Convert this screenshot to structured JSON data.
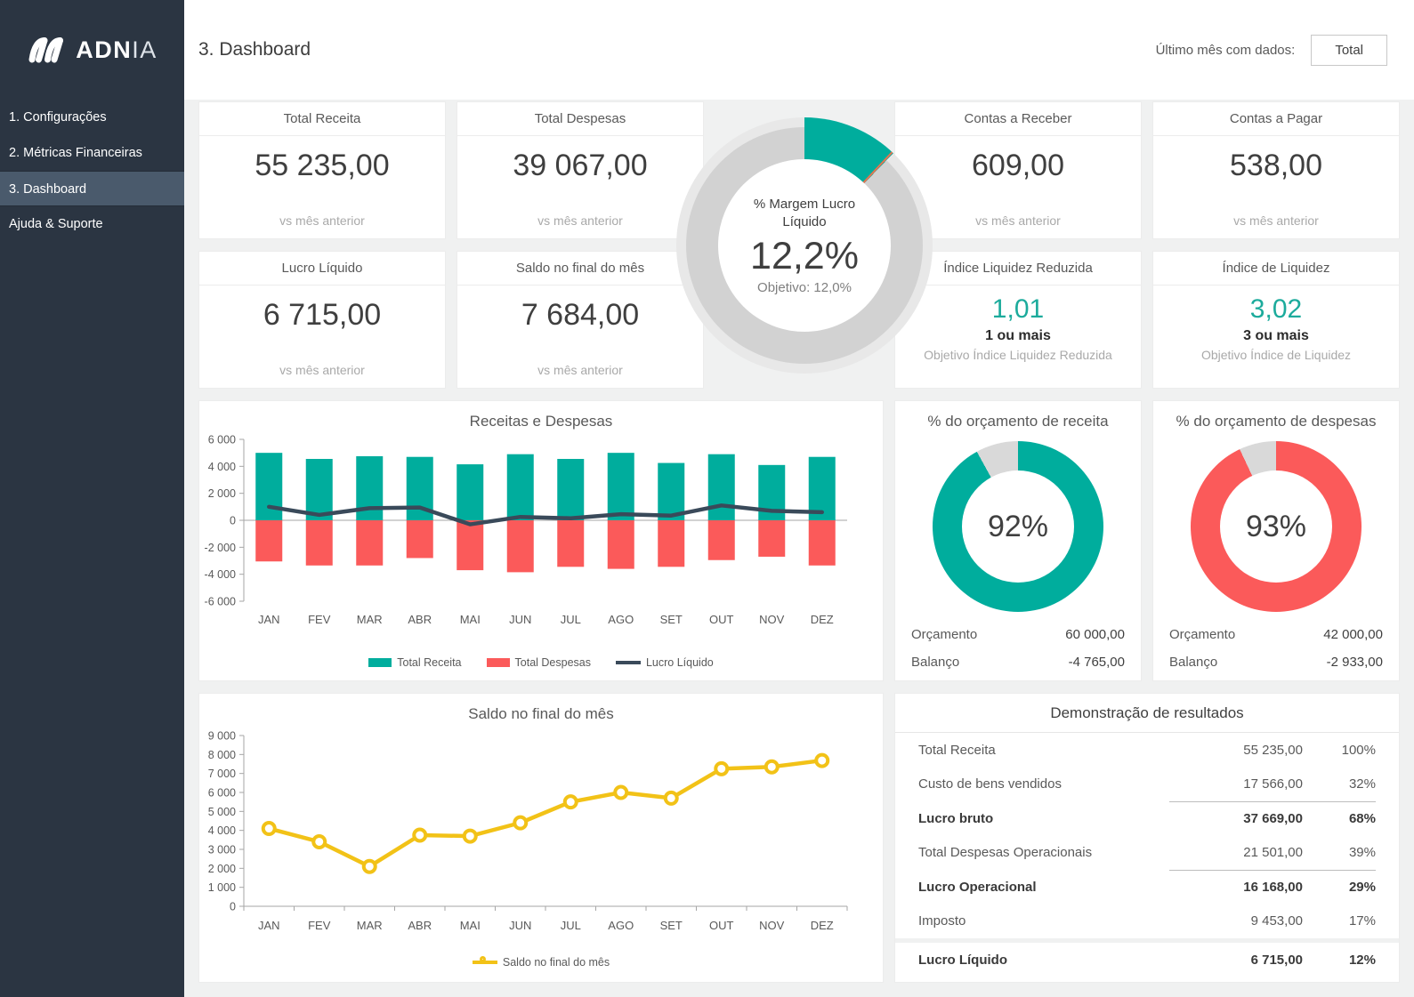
{
  "colors": {
    "teal": "#00ad9d",
    "red": "#fb5a5a",
    "dark_line": "#3a4a5a",
    "yellow": "#f2c217",
    "gauge_gray": "#d2d2d2",
    "gauge_halo": "#e8e8e8",
    "donut_gray": "#d9d9d9",
    "sidebar_bg": "#2b3542"
  },
  "sidebar": {
    "logo_bold": "ADN",
    "logo_light": "IA",
    "items": [
      {
        "label": "1. Configurações",
        "active": false
      },
      {
        "label": "2. Métricas Financeiras",
        "active": false
      },
      {
        "label": "3. Dashboard",
        "active": true
      },
      {
        "label": "Ajuda & Suporte",
        "active": false
      }
    ]
  },
  "header": {
    "title": "3. Dashboard",
    "filter_label": "Último mês com dados:",
    "filter_value": "Total"
  },
  "kpi_cards": [
    {
      "title": "Total Receita",
      "value": "55 235,00",
      "sub": "vs mês anterior"
    },
    {
      "title": "Total Despesas",
      "value": "39 067,00",
      "sub": "vs mês anterior"
    },
    {
      "title": "Contas a Receber",
      "value": "609,00",
      "sub": "vs mês anterior"
    },
    {
      "title": "Contas a Pagar",
      "value": "538,00",
      "sub": "vs mês anterior"
    },
    {
      "title": "Lucro Líquido",
      "value": "6 715,00",
      "sub": "vs mês anterior"
    },
    {
      "title": "Saldo no final do mês",
      "value": "7 684,00",
      "sub": "vs mês anterior"
    },
    {
      "title": "Índice Liquidez Reduzida",
      "value": "1,01",
      "goal": "1 ou mais",
      "sub": "Objetivo Índice Liquidez Reduzida"
    },
    {
      "title": "Índice de Liquidez",
      "value": "3,02",
      "goal": "3 ou mais",
      "sub": "Objetivo Índice de Liquidez"
    }
  ],
  "gauge": {
    "title": "% Margem Lucro Líquido",
    "value": "12,2%",
    "value_pct": 12.2,
    "target_label": "Objetivo:  12,0%",
    "target_pct": 12.0
  },
  "budget_donuts": [
    {
      "title": "% do orçamento de receita",
      "pct": 92,
      "pct_label": "92%",
      "color": "#00ad9d",
      "rows": [
        {
          "label": "Orçamento",
          "value": "60 000,00"
        },
        {
          "label": "Balanço",
          "value": "-4 765,00"
        }
      ]
    },
    {
      "title": "% do orçamento de despesas",
      "pct": 93,
      "pct_label": "93%",
      "color": "#fb5a5a",
      "rows": [
        {
          "label": "Orçamento",
          "value": "42 000,00"
        },
        {
          "label": "Balanço",
          "value": "-2 933,00"
        }
      ]
    }
  ],
  "chart_data": [
    {
      "type": "bar+line",
      "title": "Receitas e Despesas",
      "categories": [
        "JAN",
        "FEV",
        "MAR",
        "ABR",
        "MAI",
        "JUN",
        "JUL",
        "AGO",
        "SET",
        "OUT",
        "NOV",
        "DEZ"
      ],
      "series": [
        {
          "name": "Total Receita",
          "kind": "bar",
          "color": "#00ad9d",
          "values": [
            5000,
            4550,
            4750,
            4700,
            4150,
            4900,
            4550,
            5000,
            4250,
            4900,
            4100,
            4700
          ]
        },
        {
          "name": "Total Despesas",
          "kind": "bar",
          "color": "#fb5a5a",
          "values": [
            -3050,
            -3350,
            -3350,
            -2800,
            -3700,
            -3850,
            -3450,
            -3600,
            -3450,
            -2950,
            -2700,
            -3350
          ]
        },
        {
          "name": "Lucro Líquido",
          "kind": "line",
          "color": "#3a4a5a",
          "values": [
            1000,
            400,
            900,
            950,
            -300,
            250,
            150,
            450,
            350,
            1100,
            700,
            600
          ]
        }
      ],
      "ylim": [
        -6000,
        6000
      ],
      "ytick_step": 2000,
      "grid": false,
      "legend_position": "bottom"
    },
    {
      "type": "line",
      "title": "Saldo no final do mês",
      "categories": [
        "JAN",
        "FEV",
        "MAR",
        "ABR",
        "MAI",
        "JUN",
        "JUL",
        "AGO",
        "SET",
        "OUT",
        "NOV",
        "DEZ"
      ],
      "series": [
        {
          "name": "Saldo no final do mês",
          "kind": "line-marker",
          "color": "#f2c217",
          "values": [
            4100,
            3400,
            2100,
            3750,
            3700,
            4400,
            5500,
            6000,
            5700,
            7250,
            7350,
            7684
          ]
        }
      ],
      "ylim": [
        0,
        9000
      ],
      "ytick_step": 1000,
      "grid": false,
      "legend_position": "bottom"
    }
  ],
  "results_table": {
    "title": "Demonstração de resultados",
    "rows": [
      {
        "label": "Total Receita",
        "value": "55 235,00",
        "pct": "100%",
        "bold": false,
        "rule_above": false,
        "separated": false
      },
      {
        "label": "Custo de bens vendidos",
        "value": "17 566,00",
        "pct": "32%",
        "bold": false,
        "rule_above": false,
        "separated": false
      },
      {
        "label": "Lucro bruto",
        "value": "37 669,00",
        "pct": "68%",
        "bold": true,
        "rule_above": true,
        "separated": false
      },
      {
        "label": "Total Despesas Operacionais",
        "value": "21 501,00",
        "pct": "39%",
        "bold": false,
        "rule_above": false,
        "separated": false
      },
      {
        "label": "Lucro Operacional",
        "value": "16 168,00",
        "pct": "29%",
        "bold": true,
        "rule_above": true,
        "separated": false
      },
      {
        "label": "Imposto",
        "value": "9 453,00",
        "pct": "17%",
        "bold": false,
        "rule_above": false,
        "separated": false
      },
      {
        "label": "Lucro Líquido",
        "value": "6 715,00",
        "pct": "12%",
        "bold": true,
        "rule_above": false,
        "separated": true
      }
    ]
  }
}
